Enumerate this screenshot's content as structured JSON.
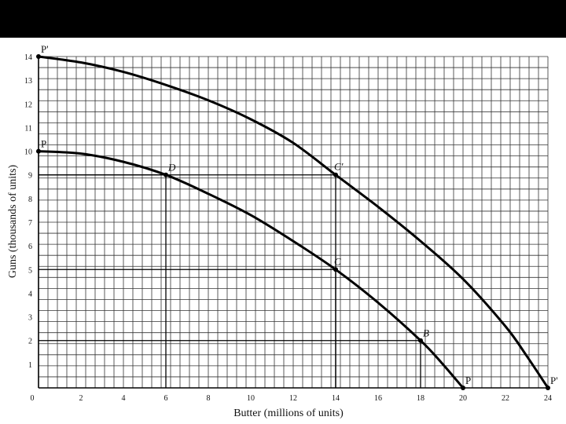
{
  "chart_data": {
    "type": "line",
    "xlabel": "Butter (millions of units)",
    "ylabel": "Guns (thousands of units)",
    "xlim": [
      0,
      24
    ],
    "ylim": [
      0,
      14
    ],
    "x_ticks": [
      0,
      2,
      4,
      6,
      8,
      10,
      12,
      14,
      16,
      18,
      20,
      22,
      24
    ],
    "y_ticks": [
      1,
      2,
      3,
      4,
      5,
      6,
      7,
      8,
      9,
      10,
      11,
      12,
      13,
      14
    ],
    "grid": true,
    "series": [
      {
        "name": "P",
        "points": [
          [
            0,
            10
          ],
          [
            2,
            9.9
          ],
          [
            4,
            9.55
          ],
          [
            6,
            9
          ],
          [
            8,
            8.2
          ],
          [
            10,
            7.3
          ],
          [
            12,
            6.2
          ],
          [
            14,
            5
          ],
          [
            16,
            3.6
          ],
          [
            18,
            2
          ],
          [
            19,
            1.05
          ],
          [
            20,
            0
          ]
        ]
      },
      {
        "name": "P'",
        "points": [
          [
            0,
            14
          ],
          [
            2,
            13.75
          ],
          [
            4,
            13.35
          ],
          [
            6,
            12.8
          ],
          [
            8,
            12.15
          ],
          [
            10,
            11.35
          ],
          [
            12,
            10.35
          ],
          [
            14,
            9
          ],
          [
            16,
            7.65
          ],
          [
            18,
            6.2
          ],
          [
            20,
            4.6
          ],
          [
            22,
            2.6
          ],
          [
            23,
            1.35
          ],
          [
            24,
            0
          ]
        ]
      }
    ],
    "points": [
      {
        "label": "P'",
        "x": 0,
        "y": 14,
        "italic": false,
        "pos": "right-up"
      },
      {
        "label": "P",
        "x": 0,
        "y": 10,
        "italic": false,
        "pos": "right-up"
      },
      {
        "label": "D",
        "x": 6,
        "y": 9,
        "italic": true,
        "pos": "right-up"
      },
      {
        "label": "C'",
        "x": 14,
        "y": 9,
        "italic": true,
        "pos": "left-up"
      },
      {
        "label": "C",
        "x": 14,
        "y": 5,
        "italic": true,
        "pos": "left-up"
      },
      {
        "label": "B",
        "x": 18,
        "y": 2,
        "italic": true,
        "pos": "right-up"
      },
      {
        "label": "P",
        "x": 20,
        "y": 0,
        "italic": false,
        "pos": "right-up"
      },
      {
        "label": "P'",
        "x": 24,
        "y": 0,
        "italic": false,
        "pos": "right-up"
      }
    ],
    "reference_lines": [
      {
        "x": 6,
        "y": 9
      },
      {
        "x": 14,
        "y": 9
      },
      {
        "x": 14,
        "y": 5
      },
      {
        "x": 18,
        "y": 2
      }
    ]
  }
}
